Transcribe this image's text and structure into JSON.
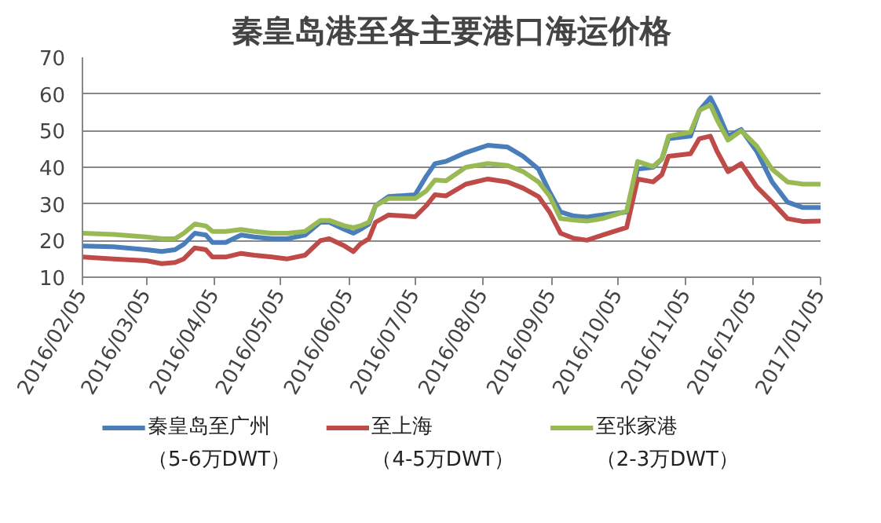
{
  "chart_data": {
    "type": "line",
    "title": "秦皇岛港至各主要港口海运价格",
    "x": [
      "2016-02-05",
      "2016-02-19",
      "2016-03-05",
      "2016-03-12",
      "2016-03-18",
      "2016-03-22",
      "2016-03-27",
      "2016-04-01",
      "2016-04-04",
      "2016-04-10",
      "2016-04-17",
      "2016-04-23",
      "2016-05-01",
      "2016-05-08",
      "2016-05-16",
      "2016-05-23",
      "2016-05-27",
      "2016-06-03",
      "2016-06-07",
      "2016-06-10",
      "2016-06-14",
      "2016-06-17",
      "2016-06-23",
      "2016-07-05",
      "2016-07-10",
      "2016-07-14",
      "2016-07-19",
      "2016-07-28",
      "2016-08-07",
      "2016-08-16",
      "2016-08-23",
      "2016-08-30",
      "2016-09-04",
      "2016-09-09",
      "2016-09-15",
      "2016-09-21",
      "2016-09-28",
      "2016-10-09",
      "2016-10-14",
      "2016-10-21",
      "2016-10-25",
      "2016-10-28",
      "2016-11-07",
      "2016-11-11",
      "2016-11-16",
      "2016-11-19",
      "2016-11-24",
      "2016-11-30",
      "2016-12-07",
      "2016-12-14",
      "2016-12-21",
      "2016-12-28",
      "2017-01-05"
    ],
    "series": [
      {
        "name": "秦皇岛至广州（5-6万DWT）",
        "color": "#4a7ebb",
        "values": [
          18.5,
          18.3,
          17.5,
          17,
          17.5,
          19,
          22,
          21.5,
          19.5,
          19.5,
          21.5,
          21,
          20.5,
          20.5,
          21.5,
          25,
          25,
          23,
          22,
          23,
          24.5,
          29.5,
          32,
          32.5,
          37.5,
          41,
          41.6,
          44,
          46,
          45.5,
          43,
          39.5,
          33.3,
          27.8,
          26.7,
          26.4,
          27,
          27.8,
          39.5,
          40,
          42.3,
          47.8,
          48.5,
          55.5,
          59,
          55.5,
          48.5,
          50.3,
          44.4,
          36,
          30.5,
          29,
          29
        ]
      },
      {
        "name": "至上海（4-5万DWT）",
        "color": "#be4b48",
        "values": [
          15.5,
          15,
          14.5,
          13.7,
          14,
          15,
          18,
          17.5,
          15.5,
          15.5,
          16.5,
          16,
          15.5,
          15,
          16,
          20,
          20.5,
          18.5,
          17,
          19,
          20.5,
          25,
          27,
          26.5,
          29.5,
          32.5,
          32.2,
          35.4,
          36.8,
          36,
          34.3,
          32,
          27.8,
          22,
          20.6,
          20.1,
          21.5,
          23.6,
          36.8,
          36,
          38,
          43,
          43.7,
          47.8,
          48.5,
          44.4,
          38.8,
          41,
          34.7,
          30.5,
          26,
          25.2,
          25.3
        ]
      },
      {
        "name": "至张家港（2-3万DWT）",
        "color": "#98b954",
        "values": [
          22,
          21.7,
          21,
          20.5,
          20.5,
          22,
          24.5,
          24,
          22.5,
          22.5,
          23,
          22.5,
          22,
          22,
          22.5,
          25.5,
          25.5,
          24,
          23.5,
          24,
          25,
          29.5,
          31.5,
          31.5,
          33.5,
          36.5,
          36.3,
          40,
          41,
          40.5,
          38.8,
          36,
          32.2,
          26,
          25.6,
          25.3,
          26,
          28,
          41.6,
          40.2,
          42.3,
          48.5,
          49.6,
          55.5,
          57,
          53,
          47.4,
          50,
          45.8,
          39.5,
          36,
          35.4,
          35.4
        ]
      }
    ],
    "xlim": [
      "2016-02-05",
      "2017-01-05"
    ],
    "xticks": [
      {
        "value": "2016-02-05",
        "label": "2016/02/05"
      },
      {
        "value": "2016-03-05",
        "label": "2016/03/05"
      },
      {
        "value": "2016-04-05",
        "label": "2016/04/05"
      },
      {
        "value": "2016-05-05",
        "label": "2016/05/05"
      },
      {
        "value": "2016-06-05",
        "label": "2016/06/05"
      },
      {
        "value": "2016-07-05",
        "label": "2016/07/05"
      },
      {
        "value": "2016-08-05",
        "label": "2016/08/05"
      },
      {
        "value": "2016-09-05",
        "label": "2016/09/05"
      },
      {
        "value": "2016-10-05",
        "label": "2016/10/05"
      },
      {
        "value": "2016-11-05",
        "label": "2016/11/05"
      },
      {
        "value": "2016-12-05",
        "label": "2016/12/05"
      },
      {
        "value": "2017-01-05",
        "label": "2017/01/05"
      }
    ],
    "ylim": [
      10,
      70
    ],
    "yticks": [
      10,
      20,
      30,
      40,
      50,
      60,
      70
    ],
    "grid": "y",
    "legend": "bottom",
    "marker": "none",
    "line_style": "solid"
  }
}
